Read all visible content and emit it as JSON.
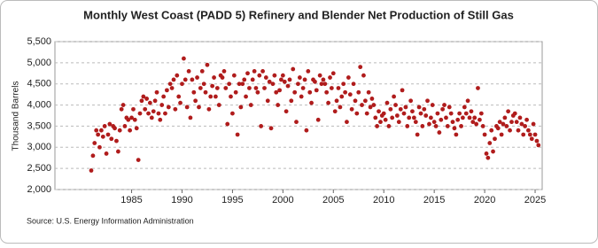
{
  "chart_data": {
    "type": "scatter",
    "title": "Monthly West Coast (PADD 5) Refinery and Blender Net Production of Still Gas",
    "y_label": "Thousand Barrels",
    "source": "Source: U.S. Energy Information Administration",
    "color": "#b01c1c",
    "grid": true,
    "xlim": [
      1977.4,
      2025.7
    ],
    "xticks": [
      1985,
      1990,
      1995,
      2000,
      2005,
      2010,
      2015,
      2020,
      2025
    ],
    "ylim": [
      2000,
      5500
    ],
    "yticks": [
      {
        "value": 2000,
        "label": "2,000"
      },
      {
        "value": 2500,
        "label": "2,500"
      },
      {
        "value": 3000,
        "label": "3,000"
      },
      {
        "value": 3500,
        "label": "3,500"
      },
      {
        "value": 4000,
        "label": "4,000"
      },
      {
        "value": 4500,
        "label": "4,500"
      },
      {
        "value": 5000,
        "label": "5,000"
      },
      {
        "value": 5500,
        "label": "5,500"
      }
    ],
    "x": [
      1981,
      1981.17,
      1981.33,
      1981.5,
      1981.67,
      1981.83,
      1982,
      1982.17,
      1982.33,
      1982.5,
      1982.67,
      1982.83,
      1983,
      1983.17,
      1983.33,
      1983.5,
      1983.67,
      1983.83,
      1984,
      1984.17,
      1984.33,
      1984.5,
      1984.67,
      1984.83,
      1985,
      1985.17,
      1985.33,
      1985.5,
      1985.67,
      1985.83,
      1986,
      1986.17,
      1986.33,
      1986.5,
      1986.67,
      1986.83,
      1987,
      1987.17,
      1987.33,
      1987.5,
      1987.67,
      1987.83,
      1988,
      1988.17,
      1988.33,
      1988.5,
      1988.67,
      1988.83,
      1989,
      1989.17,
      1989.33,
      1989.5,
      1989.67,
      1989.83,
      1990,
      1990.17,
      1990.33,
      1990.5,
      1990.67,
      1990.83,
      1991,
      1991.17,
      1991.33,
      1991.5,
      1991.67,
      1991.83,
      1992,
      1992.17,
      1992.33,
      1992.5,
      1992.67,
      1992.83,
      1993,
      1993.17,
      1993.33,
      1993.5,
      1993.67,
      1993.83,
      1994,
      1994.17,
      1994.33,
      1994.5,
      1994.67,
      1994.83,
      1995,
      1995.17,
      1995.33,
      1995.5,
      1995.67,
      1995.83,
      1996,
      1996.17,
      1996.33,
      1996.5,
      1996.67,
      1996.83,
      1997,
      1997.17,
      1997.33,
      1997.5,
      1997.67,
      1997.83,
      1998,
      1998.17,
      1998.33,
      1998.5,
      1998.67,
      1998.83,
      1999,
      1999.17,
      1999.33,
      1999.5,
      1999.67,
      1999.83,
      2000,
      2000.17,
      2000.33,
      2000.5,
      2000.67,
      2000.83,
      2001,
      2001.17,
      2001.33,
      2001.5,
      2001.67,
      2001.83,
      2002,
      2002.17,
      2002.33,
      2002.5,
      2002.67,
      2002.83,
      2003,
      2003.17,
      2003.33,
      2003.5,
      2003.67,
      2003.83,
      2004,
      2004.17,
      2004.33,
      2004.5,
      2004.67,
      2004.83,
      2005,
      2005.17,
      2005.33,
      2005.5,
      2005.67,
      2005.83,
      2006,
      2006.17,
      2006.33,
      2006.5,
      2006.67,
      2006.83,
      2007,
      2007.17,
      2007.33,
      2007.5,
      2007.67,
      2007.83,
      2008,
      2008.17,
      2008.33,
      2008.5,
      2008.67,
      2008.83,
      2009,
      2009.17,
      2009.33,
      2009.5,
      2009.67,
      2009.83,
      2010,
      2010.17,
      2010.33,
      2010.5,
      2010.67,
      2010.83,
      2011,
      2011.17,
      2011.33,
      2011.5,
      2011.67,
      2011.83,
      2012,
      2012.17,
      2012.33,
      2012.5,
      2012.67,
      2012.83,
      2013,
      2013.17,
      2013.33,
      2013.5,
      2013.67,
      2013.83,
      2014,
      2014.17,
      2014.33,
      2014.5,
      2014.67,
      2014.83,
      2015,
      2015.17,
      2015.33,
      2015.5,
      2015.67,
      2015.83,
      2016,
      2016.17,
      2016.33,
      2016.5,
      2016.67,
      2016.83,
      2017,
      2017.17,
      2017.33,
      2017.5,
      2017.67,
      2017.83,
      2018,
      2018.17,
      2018.33,
      2018.5,
      2018.67,
      2018.83,
      2019,
      2019.17,
      2019.33,
      2019.5,
      2019.67,
      2019.83,
      2020,
      2020.17,
      2020.33,
      2020.5,
      2020.67,
      2020.83,
      2021,
      2021.17,
      2021.33,
      2021.5,
      2021.67,
      2021.83,
      2022,
      2022.17,
      2022.33,
      2022.5,
      2022.67,
      2022.83,
      2023,
      2023.17,
      2023.33,
      2023.5,
      2023.67,
      2023.83,
      2024,
      2024.17,
      2024.33,
      2024.5,
      2024.67,
      2024.83,
      2025,
      2025.17,
      2025.33
    ],
    "values": [
      2450,
      2800,
      3100,
      3400,
      3300,
      3000,
      3400,
      3250,
      3500,
      2850,
      3300,
      3550,
      3200,
      3500,
      3450,
      3150,
      2900,
      3400,
      3900,
      4000,
      3500,
      3700,
      3650,
      3400,
      3700,
      3900,
      3650,
      3450,
      2700,
      3800,
      4100,
      4200,
      3900,
      4150,
      3800,
      4050,
      3700,
      3850,
      4100,
      4300,
      3800,
      3650,
      4000,
      4200,
      3800,
      4350,
      3950,
      4500,
      4400,
      4600,
      3900,
      4700,
      4200,
      4050,
      4500,
      5100,
      4600,
      3950,
      4800,
      3700,
      4600,
      4300,
      4100,
      4650,
      3950,
      4400,
      4800,
      4500,
      4300,
      4950,
      3900,
      4200,
      4450,
      4650,
      4200,
      4400,
      4000,
      4700,
      4650,
      4800,
      4400,
      3550,
      4500,
      4200,
      3800,
      4700,
      4300,
      3300,
      4500,
      3950,
      4500,
      4600,
      4200,
      4750,
      4400,
      4000,
      4600,
      4800,
      4400,
      4300,
      4700,
      3500,
      4800,
      4400,
      4650,
      4100,
      4550,
      3450,
      4500,
      4700,
      4300,
      4000,
      4350,
      4600,
      4700,
      4550,
      3850,
      4450,
      4600,
      4100,
      4850,
      4300,
      3600,
      4500,
      4650,
      4200,
      4400,
      4600,
      3400,
      4800,
      4300,
      4050,
      4600,
      4550,
      4350,
      3650,
      4700,
      4500,
      4600,
      4500,
      4300,
      4050,
      4650,
      4400,
      4750,
      3850,
      4100,
      4400,
      3950,
      4200,
      4500,
      4300,
      3600,
      4650,
      4250,
      3900,
      4500,
      4100,
      3800,
      4300,
      4900,
      4000,
      4700,
      4100,
      3800,
      4300,
      3950,
      4150,
      4000,
      3700,
      3500,
      3850,
      3600,
      3750,
      3800,
      3650,
      4050,
      3500,
      3900,
      3700,
      4200,
      4000,
      3750,
      3600,
      3900,
      4350,
      3800,
      3950,
      3500,
      3700,
      4100,
      3850,
      3700,
      3600,
      3300,
      3950,
      3800,
      3500,
      3900,
      3750,
      4100,
      3550,
      3700,
      4000,
      3600,
      3500,
      3800,
      3350,
      3650,
      3900,
      4000,
      3700,
      3500,
      3950,
      3800,
      3600,
      3450,
      3300,
      3650,
      3800,
      3500,
      3700,
      3950,
      3800,
      4100,
      3700,
      3850,
      3600,
      3700,
      3550,
      4400,
      3650,
      3800,
      3500,
      3300,
      2850,
      2750,
      3100,
      3400,
      2900,
      3200,
      3500,
      3450,
      3600,
      3300,
      3550,
      3700,
      3500,
      3850,
      3400,
      3600,
      3750,
      3800,
      3600,
      3400,
      3700,
      3550,
      3300,
      3500,
      3650,
      3400,
      3300,
      3200,
      3550,
      3300,
      3150,
      3050
    ]
  }
}
